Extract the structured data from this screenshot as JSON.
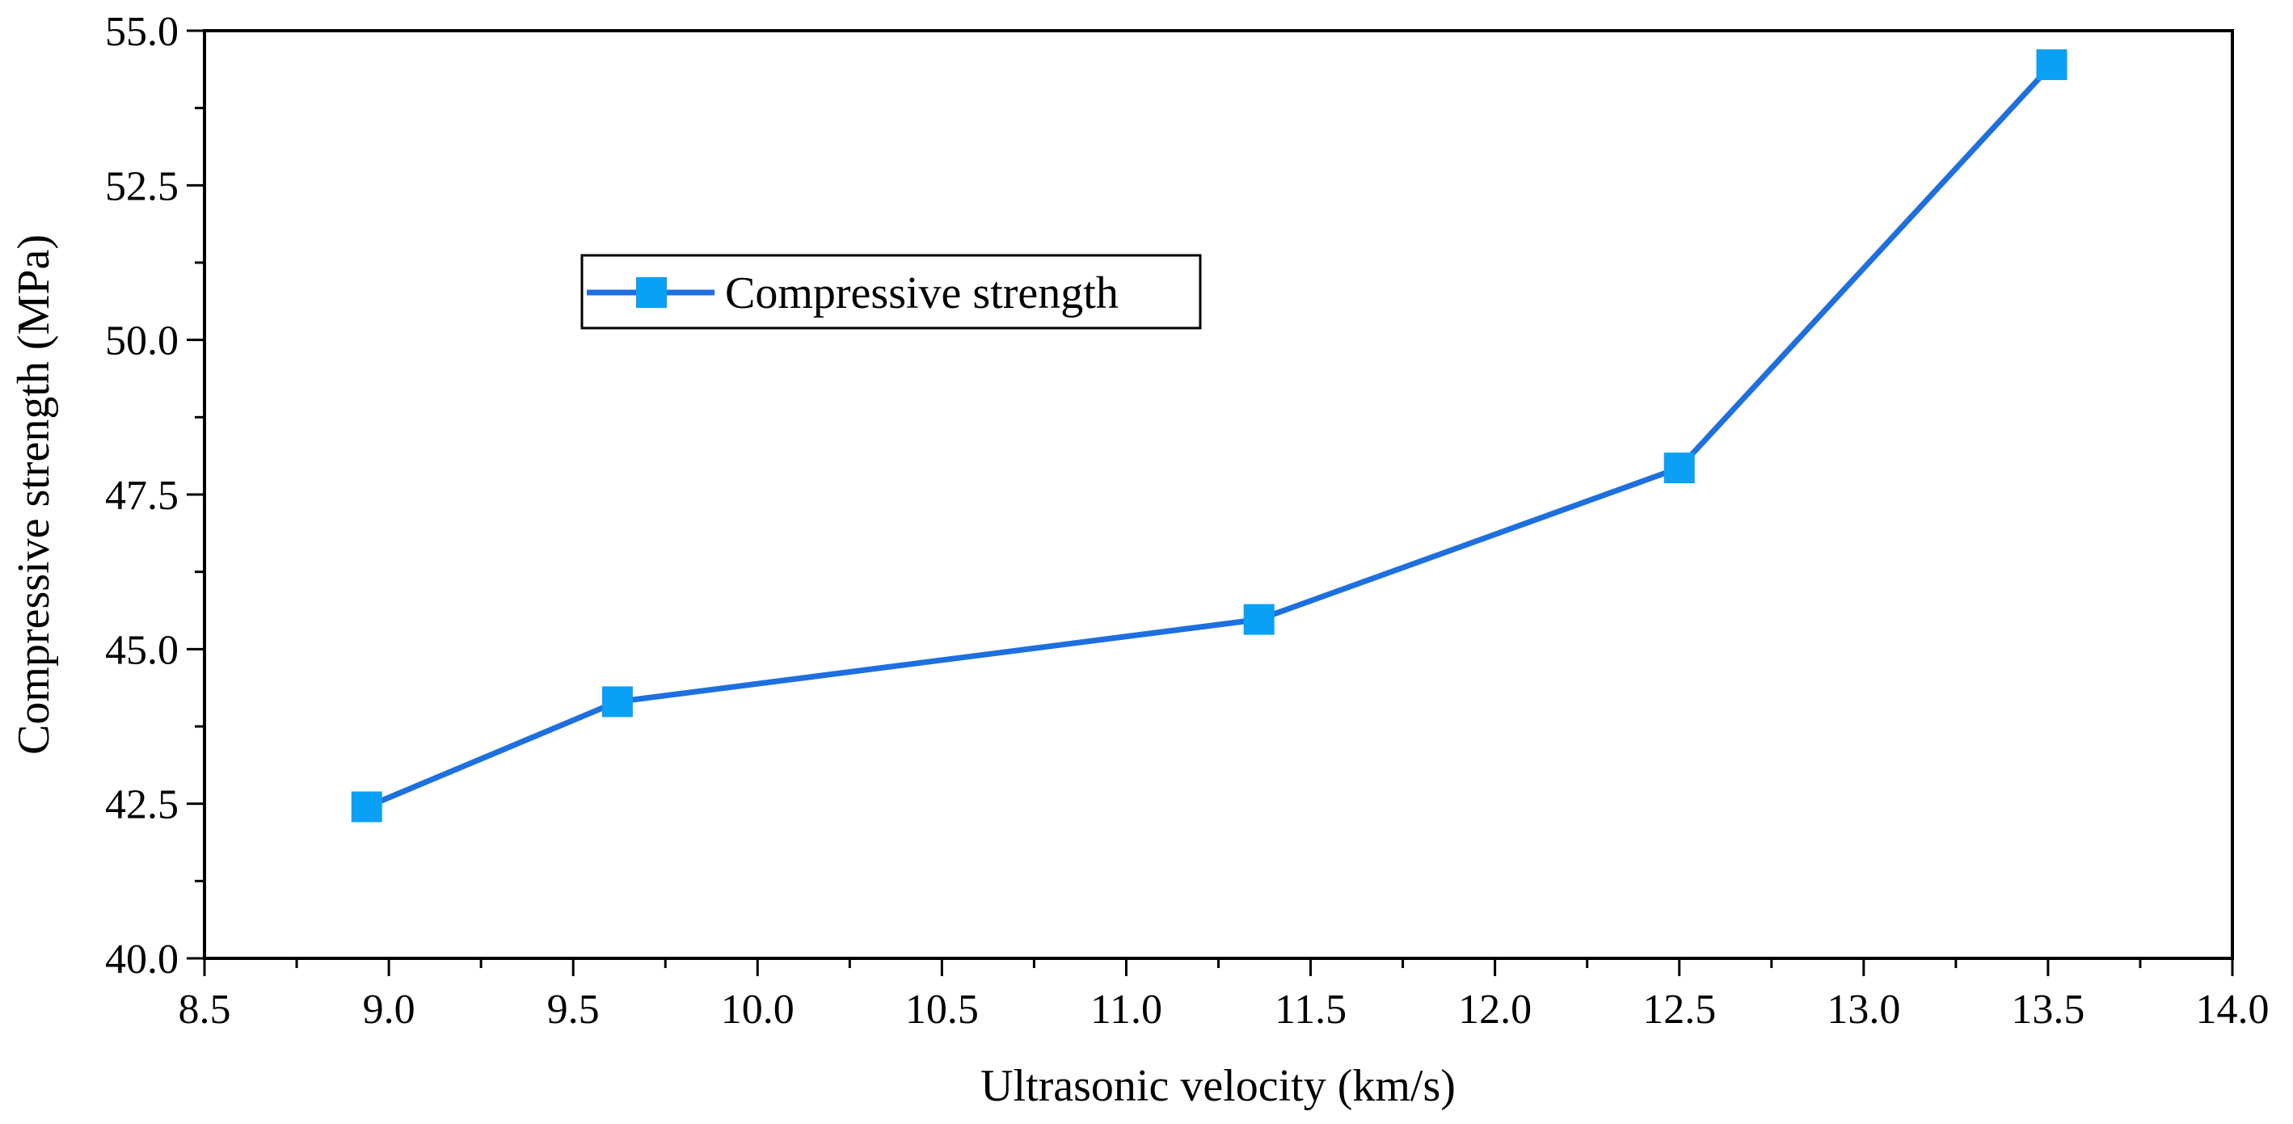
{
  "chart_data": {
    "type": "line",
    "title": "",
    "xlabel": "Ultrasonic velocity (km/s)",
    "ylabel": "Compressive strength (MPa)",
    "xlim": [
      8.5,
      14.0
    ],
    "ylim": [
      40.0,
      55.0
    ],
    "x_ticks": [
      "8.5",
      "9.0",
      "9.5",
      "10.0",
      "10.5",
      "11.0",
      "11.5",
      "12.0",
      "12.5",
      "13.0",
      "13.5",
      "14.0"
    ],
    "y_ticks": [
      "40.0",
      "42.5",
      "45.0",
      "47.5",
      "50.0",
      "52.5",
      "55.0"
    ],
    "grid": false,
    "legend_position": "upper-left",
    "series": [
      {
        "name": "Compressive strength",
        "color": "#1E6FE0",
        "marker_color": "#0AA0F5",
        "marker": "square",
        "x": [
          8.94,
          9.62,
          11.36,
          12.5,
          13.51
        ],
        "y": [
          42.45,
          44.15,
          45.48,
          47.93,
          54.45
        ]
      }
    ]
  }
}
